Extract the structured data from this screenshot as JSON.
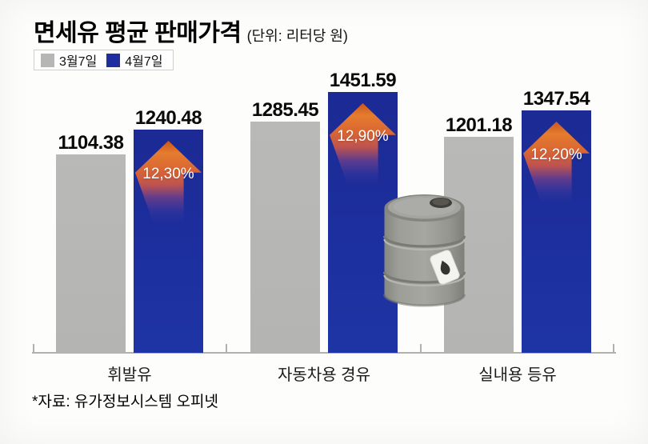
{
  "header": {
    "title": "면세유 평균 판매가격",
    "subtitle": "(단위: 리터당 원)"
  },
  "legend": {
    "items": [
      {
        "label": "3월7일",
        "color": "#b6b6b4"
      },
      {
        "label": "4월7일",
        "color": "#1d2f9e"
      }
    ]
  },
  "chart_data": {
    "type": "bar",
    "title": "면세유 평균 판매가격",
    "unit_label": "(단위: 리터당 원)",
    "categories": [
      "휘발유",
      "자동차용 경유",
      "실내용 등유"
    ],
    "series": [
      {
        "name": "3월7일",
        "color": "#b6b6b4",
        "values": [
          1104.38,
          1285.45,
          1201.18
        ]
      },
      {
        "name": "4월7일",
        "color": "#1d2f9e",
        "values": [
          1240.48,
          1451.59,
          1347.54
        ]
      }
    ],
    "change_labels": [
      "12,30%",
      "12,90%",
      "12,20%"
    ],
    "arrow_color": "#d96428",
    "value_labels_shown": true,
    "ylim": [
      0,
      1550
    ],
    "grid": false,
    "legend_position": "top-left"
  },
  "source_note": "*자료: 유가정보시스템 오피넷"
}
